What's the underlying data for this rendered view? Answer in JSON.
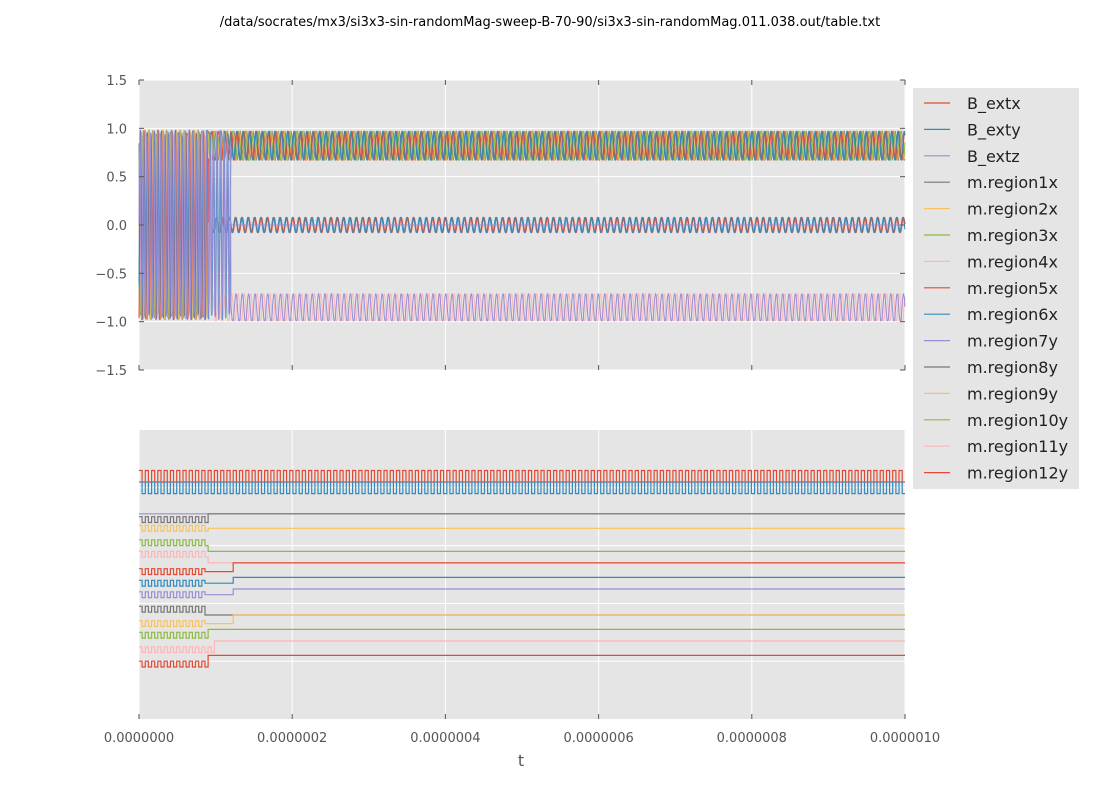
{
  "title": "/data/socrates/mx3/si3x3-sin-randomMag-sweep-B-70-90/si3x3-sin-randomMag.011.038.out/table.txt",
  "chart_data": [
    {
      "type": "line",
      "panel": "top",
      "title": "",
      "xlabel": "",
      "ylabel": "",
      "xlim": [
        0,
        1e-06
      ],
      "ylim": [
        -1.5,
        1.5
      ],
      "y_ticks": [
        "−1.5",
        "−1.0",
        "−0.5",
        "0.0",
        "0.5",
        "1.0",
        "1.5"
      ],
      "y_tick_values": [
        -1.5,
        -1.0,
        -0.5,
        0.0,
        0.5,
        1.0,
        1.5
      ],
      "x_ticks_visible": false,
      "grid": true,
      "background": "#e5e5e5",
      "description_values": {
        "switch_region_t": [
          9e-08,
          1.2e-07
        ],
        "oscillation_period_t": 8.3e-09
      },
      "series": [
        {
          "name": "B_extx",
          "color": "#e24a33",
          "center": 0.0,
          "amplitude": 0.08,
          "switch_t": null,
          "after_center": null
        },
        {
          "name": "B_exty",
          "color": "#348abd",
          "center": 0.0,
          "amplitude": 0.08,
          "switch_t": null,
          "after_center": null
        },
        {
          "name": "B_extz",
          "color": "#988ed5",
          "center": 0.0,
          "amplitude": 0.0,
          "switch_t": null,
          "after_center": null
        },
        {
          "name": "m.region1x",
          "color": "#777777",
          "center": 0.0,
          "amplitude": 0.98,
          "switch_t": 8.5e-08,
          "after_center": 0.82
        },
        {
          "name": "m.region2x",
          "color": "#fbc15e",
          "center": 0.0,
          "amplitude": 0.98,
          "switch_t": 9e-08,
          "after_center": 0.82
        },
        {
          "name": "m.region3x",
          "color": "#8eba42",
          "center": 0.0,
          "amplitude": 0.98,
          "switch_t": 9e-08,
          "after_center": 0.82
        },
        {
          "name": "m.region4x",
          "color": "#ffb5b8",
          "center": 0.0,
          "amplitude": 0.98,
          "switch_t": 9.5e-08,
          "after_center": -0.86
        },
        {
          "name": "m.region5x",
          "color": "#e24a33",
          "center": 0.0,
          "amplitude": 0.98,
          "switch_t": 9e-08,
          "after_center": 0.82
        },
        {
          "name": "m.region6x",
          "color": "#348abd",
          "center": 0.0,
          "amplitude": 0.98,
          "switch_t": 1.2e-07,
          "after_center": 0.82
        },
        {
          "name": "m.region7y",
          "color": "#988ed5",
          "center": 0.0,
          "amplitude": 0.98,
          "switch_t": 1.2e-07,
          "after_center": -0.86
        }
      ]
    },
    {
      "type": "line",
      "panel": "bottom",
      "title": "",
      "xlabel": "t",
      "ylabel": "",
      "xlim": [
        0,
        1e-06
      ],
      "x_ticks": [
        "0.0000000",
        "0.0000002",
        "0.0000004",
        "0.0000006",
        "0.0000008",
        "0.0000010"
      ],
      "x_tick_values": [
        0,
        2e-07,
        4e-07,
        6e-07,
        8e-07,
        1e-06
      ],
      "y_ticks_visible": false,
      "grid": true,
      "background": "#e5e5e5",
      "series": [
        {
          "name": "B_extx",
          "color": "#e24a33",
          "level": 0.84,
          "level_after": 0.84,
          "switch_t": null,
          "square_amp": 0.04,
          "square_until": 1e-06
        },
        {
          "name": "B_exty",
          "color": "#348abd",
          "level": 0.8,
          "level_after": 0.8,
          "switch_t": null,
          "square_amp": 0.04,
          "square_until": 1e-06
        },
        {
          "name": "B_extz",
          "color": "#988ed5",
          "level": 0.71,
          "level_after": 0.71,
          "switch_t": null,
          "square_amp": 0.0,
          "square_until": 0
        },
        {
          "name": "m.region1x",
          "color": "#777777",
          "level": 0.69,
          "level_after": 0.71,
          "switch_t": 8.8e-08,
          "square_amp": 0.02,
          "square_until": 8.8e-08
        },
        {
          "name": "m.region2x",
          "color": "#fbc15e",
          "level": 0.66,
          "level_after": 0.66,
          "switch_t": 9e-08,
          "square_amp": 0.02,
          "square_until": 9e-08
        },
        {
          "name": "m.region3x",
          "color": "#8eba42",
          "level": 0.61,
          "level_after": 0.58,
          "switch_t": 9e-08,
          "square_amp": 0.02,
          "square_until": 9e-08
        },
        {
          "name": "m.region4x",
          "color": "#ffb5b8",
          "level": 0.57,
          "level_after": 0.54,
          "switch_t": 9e-08,
          "square_amp": 0.02,
          "square_until": 9e-08
        },
        {
          "name": "m.region5x",
          "color": "#e24a33",
          "level": 0.51,
          "level_after": 0.54,
          "switch_t": 1.2e-07,
          "square_amp": 0.02,
          "square_until": 8.5e-08
        },
        {
          "name": "m.region6x",
          "color": "#348abd",
          "level": 0.47,
          "level_after": 0.49,
          "switch_t": 1.2e-07,
          "square_amp": 0.02,
          "square_until": 8.5e-08
        },
        {
          "name": "m.region7y",
          "color": "#988ed5",
          "level": 0.43,
          "level_after": 0.45,
          "switch_t": 1.2e-07,
          "square_amp": 0.02,
          "square_until": 8.5e-08
        },
        {
          "name": "m.region8y",
          "color": "#777777",
          "level": 0.38,
          "level_after": 0.36,
          "switch_t": 8.5e-08,
          "square_amp": 0.02,
          "square_until": 8.5e-08
        },
        {
          "name": "m.region9y",
          "color": "#fbc15e",
          "level": 0.33,
          "level_after": 0.36,
          "switch_t": 1.2e-07,
          "square_amp": 0.02,
          "square_until": 8.5e-08
        },
        {
          "name": "m.region10y",
          "color": "#8eba42",
          "level": 0.29,
          "level_after": 0.31,
          "switch_t": 9e-08,
          "square_amp": 0.02,
          "square_until": 9e-08
        },
        {
          "name": "m.region11y",
          "color": "#ffb5b8",
          "level": 0.24,
          "level_after": 0.27,
          "switch_t": 9.5e-08,
          "square_amp": 0.02,
          "square_until": 9.5e-08
        },
        {
          "name": "m.region12y",
          "color": "#e24a33",
          "level": 0.19,
          "level_after": 0.22,
          "switch_t": 9e-08,
          "square_amp": 0.02,
          "square_until": 9e-08
        }
      ]
    }
  ],
  "legend": {
    "placement": "right-outside-top",
    "entries": [
      {
        "label": "B_extx",
        "color": "#e24a33"
      },
      {
        "label": "B_exty",
        "color": "#348abd"
      },
      {
        "label": "B_extz",
        "color": "#988ed5"
      },
      {
        "label": "m.region1x",
        "color": "#777777"
      },
      {
        "label": "m.region2x",
        "color": "#fbc15e"
      },
      {
        "label": "m.region3x",
        "color": "#8eba42"
      },
      {
        "label": "m.region4x",
        "color": "#ffb5b8"
      },
      {
        "label": "m.region5x",
        "color": "#e24a33"
      },
      {
        "label": "m.region6x",
        "color": "#348abd"
      },
      {
        "label": "m.region7y",
        "color": "#988ed5"
      },
      {
        "label": "m.region8y",
        "color": "#777777"
      },
      {
        "label": "m.region9y",
        "color": "#fbc15e"
      },
      {
        "label": "m.region10y",
        "color": "#8eba42"
      },
      {
        "label": "m.region11y",
        "color": "#ffb5b8"
      },
      {
        "label": "m.region12y",
        "color": "#e24a33"
      }
    ]
  }
}
